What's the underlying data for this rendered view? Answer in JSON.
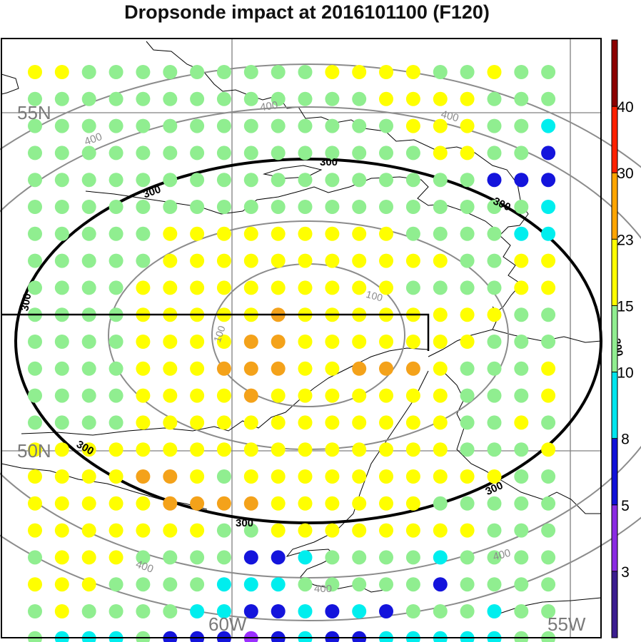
{
  "title": "Dropsonde impact at 2016101100 (F120)",
  "map_labels": {
    "lat_55": "55N",
    "lat_50": "50N",
    "lon_60": "60W",
    "lon_55": "55W"
  },
  "contour_labels": {
    "c100": "100",
    "c300": "300",
    "c400": "400"
  },
  "colorbar": {
    "tick_labels": [
      "3",
      "5",
      "8",
      "10",
      "15",
      "23",
      "30",
      "40"
    ],
    "colors": [
      "#3b1d8f",
      "#8a2be2",
      "#1010d8",
      "#00e5ee",
      "#90ee90",
      "#ffff00",
      "#ffa500",
      "#ff2000",
      "#8b0000"
    ]
  },
  "dot_colors": {
    "g": "#90ee90",
    "y": "#ffff00",
    "o": "#f4a21a",
    "c": "#00eeee",
    "b": "#1414dc",
    "p": "#9b30ff"
  },
  "dot_grid": [
    "yygggggggggyyyyggygg",
    "gggggggggggggyyyyggg",
    "ggggggggggggggyyyggc",
    "gggggggggggggggyyggb",
    "gggggggggggggggggbbb",
    "gggggggggggggggggggc",
    "gggggyyyyyyyyyggggcc",
    "gggggyyyyyyyyyyyggyy",
    "ggggyyyyyyyyyyggggyy",
    "ggggyyyyyoyyyyyyyygg",
    "ggggyyyyooyyyyyyyggg",
    "ggggyyyoooyyoooygggy",
    "ggggyyyyoyyyyyyygggy",
    "ggggyyyyyyyyyyyyggyg",
    "yyyyyyyyyyyyyyyygggy",
    "yyyyooygyyyyyyyyyygg",
    "yyyyyooooyyyyyyggggg",
    "yyyyyyyggyyyyyyyyggg",
    "gyyyggggbbcggggcgggg",
    "yyyggggcccgggggbgggg",
    "gyggggccbbcbcbgggcgg",
    "gcccgbbbpbcbbcccccgg"
  ],
  "icons": [
    "colorbar"
  ]
}
